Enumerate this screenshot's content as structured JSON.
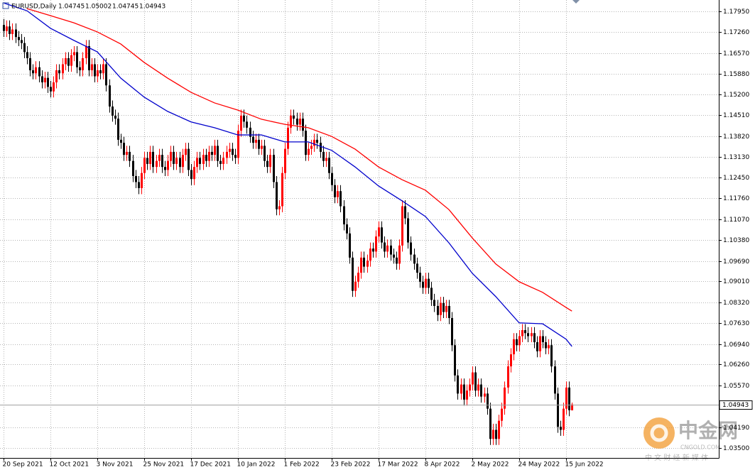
{
  "chart_data": {
    "type": "candlestick",
    "title": "EURUSD,Daily",
    "categories": [
      "20 Sep 2021",
      null,
      null,
      null,
      null,
      null,
      null,
      null,
      null,
      null,
      null,
      null,
      null,
      null,
      null,
      null,
      "12 Oct 2021",
      null,
      null,
      null,
      null,
      null,
      null,
      null,
      null,
      null,
      null,
      null,
      null,
      null,
      null,
      null,
      "3 Nov 2021",
      null,
      null,
      null,
      null,
      null,
      null,
      null,
      null,
      null,
      null,
      null,
      null,
      null,
      null,
      null,
      "25 Nov 2021",
      null,
      null,
      null,
      null,
      null,
      null,
      null,
      null,
      null,
      null,
      null,
      null,
      null,
      null,
      null,
      "17 Dec 2021",
      null,
      null,
      null,
      null,
      null,
      null,
      null,
      null,
      null,
      null,
      null,
      null,
      null,
      null,
      null,
      "10 Jan 2022",
      null,
      null,
      null,
      null,
      null,
      null,
      null,
      null,
      null,
      null,
      null,
      null,
      null,
      null,
      null,
      "1 Feb 2022",
      null,
      null,
      null,
      null,
      null,
      null,
      null,
      null,
      null,
      null,
      null,
      null,
      null,
      null,
      null,
      "23 Feb 2022",
      null,
      null,
      null,
      null,
      null,
      null,
      null,
      null,
      null,
      null,
      null,
      null,
      null,
      null,
      null,
      "17 Mar 2022",
      null,
      null,
      null,
      null,
      null,
      null,
      null,
      null,
      null,
      null,
      null,
      null,
      null,
      null,
      null,
      "8 Apr 2022",
      null,
      null,
      null,
      null,
      null,
      null,
      null,
      null,
      null,
      null,
      null,
      null,
      null,
      null,
      null,
      "2 May 2022",
      null,
      null,
      null,
      null,
      null,
      null,
      null,
      null,
      null,
      null,
      null,
      null,
      null,
      null,
      null,
      "24 May 2022",
      null,
      null,
      null,
      null,
      null,
      null,
      null,
      null,
      null,
      null,
      null,
      null,
      null,
      null,
      null,
      "15 Jun 2022",
      null,
      null
    ],
    "open": [
      1.175,
      1.173,
      1.1745,
      1.172,
      1.1735,
      1.171,
      1.17,
      1.169,
      1.166,
      1.164,
      1.16,
      1.159,
      1.161,
      1.158,
      1.156,
      1.1575,
      1.1545,
      1.153,
      1.156,
      1.16,
      1.159,
      1.162,
      1.164,
      1.1615,
      1.165,
      1.166,
      1.161,
      1.16,
      1.164,
      1.168,
      1.16,
      1.162,
      1.158,
      1.16,
      1.159,
      1.162,
      1.155,
      1.148,
      1.145,
      1.144,
      1.137,
      1.136,
      1.132,
      1.133,
      1.13,
      1.125,
      1.123,
      1.121,
      1.126,
      1.131,
      1.129,
      1.133,
      1.128,
      1.13,
      1.132,
      1.128,
      1.127,
      1.13,
      1.133,
      1.129,
      1.131,
      1.128,
      1.132,
      1.134,
      1.127,
      1.124,
      1.128,
      1.131,
      1.129,
      1.132,
      1.13,
      1.133,
      1.132,
      1.135,
      1.13,
      1.129,
      1.131,
      1.133,
      1.134,
      1.132,
      1.131,
      1.14,
      1.145,
      1.143,
      1.141,
      1.138,
      1.136,
      1.137,
      1.134,
      1.135,
      1.13,
      1.128,
      1.132,
      1.123,
      1.114,
      1.115,
      1.126,
      1.134,
      1.141,
      1.145,
      1.144,
      1.142,
      1.144,
      1.14,
      1.132,
      1.134,
      1.135,
      1.137,
      1.136,
      1.133,
      1.13,
      1.131,
      1.126,
      1.122,
      1.118,
      1.12,
      1.115,
      1.109,
      1.106,
      1.098,
      1.087,
      1.09,
      1.093,
      1.098,
      1.095,
      1.097,
      1.101,
      1.1,
      1.105,
      1.108,
      1.103,
      1.1,
      1.102,
      1.099,
      1.098,
      1.096,
      1.102,
      1.115,
      1.111,
      1.103,
      1.099,
      1.096,
      1.093,
      1.09,
      1.088,
      1.091,
      1.088,
      1.084,
      1.082,
      1.079,
      1.083,
      1.08,
      1.082,
      1.078,
      1.069,
      1.059,
      1.053,
      1.056,
      1.051,
      1.054,
      1.056,
      1.06,
      1.054,
      1.056,
      1.052,
      1.053,
      1.048,
      1.038,
      1.041,
      1.038,
      1.044,
      1.048,
      1.055,
      1.062,
      1.066,
      1.071,
      1.069,
      1.072,
      1.074,
      1.073,
      1.072,
      1.073,
      1.07,
      1.067,
      1.072,
      1.07,
      1.068,
      1.069,
      1.062,
      1.053,
      1.042,
      1.041,
      1.048,
      1.055,
      1.04745
    ],
    "high": [
      1.177,
      1.1765,
      1.1765,
      1.1755,
      1.1755,
      1.173,
      1.172,
      1.171,
      1.168,
      1.166,
      1.162,
      1.163,
      1.163,
      1.16,
      1.1595,
      1.1595,
      1.1565,
      1.158,
      1.162,
      1.162,
      1.164,
      1.166,
      1.166,
      1.167,
      1.168,
      1.168,
      1.163,
      1.166,
      1.17,
      1.17,
      1.164,
      1.164,
      1.162,
      1.162,
      1.164,
      1.164,
      1.157,
      1.15,
      1.147,
      1.146,
      1.139,
      1.138,
      1.135,
      1.135,
      1.132,
      1.127,
      1.125,
      1.128,
      1.133,
      1.133,
      1.135,
      1.135,
      1.132,
      1.134,
      1.134,
      1.13,
      1.132,
      1.135,
      1.135,
      1.133,
      1.133,
      1.134,
      1.136,
      1.136,
      1.129,
      1.13,
      1.133,
      1.133,
      1.134,
      1.134,
      1.135,
      1.135,
      1.137,
      1.137,
      1.132,
      1.133,
      1.135,
      1.136,
      1.136,
      1.134,
      1.142,
      1.147,
      1.147,
      1.145,
      1.143,
      1.14,
      1.139,
      1.139,
      1.137,
      1.137,
      1.132,
      1.134,
      1.134,
      1.125,
      1.117,
      1.128,
      1.136,
      1.143,
      1.147,
      1.147,
      1.146,
      1.146,
      1.146,
      1.142,
      1.136,
      1.137,
      1.139,
      1.139,
      1.138,
      1.135,
      1.133,
      1.133,
      1.128,
      1.124,
      1.122,
      1.122,
      1.117,
      1.111,
      1.108,
      1.1,
      1.092,
      1.095,
      1.1,
      1.1,
      1.099,
      1.103,
      1.103,
      1.107,
      1.11,
      1.11,
      1.105,
      1.104,
      1.104,
      1.101,
      1.1,
      1.104,
      1.117,
      1.117,
      1.113,
      1.105,
      1.101,
      1.098,
      1.095,
      1.092,
      1.093,
      1.093,
      1.09,
      1.086,
      1.084,
      1.085,
      1.085,
      1.084,
      1.084,
      1.08,
      1.071,
      1.061,
      1.058,
      1.058,
      1.056,
      1.058,
      1.062,
      1.062,
      1.058,
      1.058,
      1.055,
      1.055,
      1.05,
      1.043,
      1.043,
      1.046,
      1.05,
      1.057,
      1.064,
      1.068,
      1.073,
      1.073,
      1.074,
      1.076,
      1.076,
      1.075,
      1.075,
      1.075,
      1.072,
      1.074,
      1.074,
      1.072,
      1.071,
      1.071,
      1.064,
      1.055,
      1.044,
      1.05,
      1.057,
      1.057,
      1.05002
    ],
    "low": [
      1.171,
      1.171,
      1.17,
      1.17,
      1.169,
      1.168,
      1.167,
      1.164,
      1.162,
      1.158,
      1.157,
      1.157,
      1.156,
      1.154,
      1.154,
      1.1525,
      1.151,
      1.151,
      1.154,
      1.157,
      1.157,
      1.16,
      1.1595,
      1.1595,
      1.163,
      1.159,
      1.158,
      1.158,
      1.162,
      1.158,
      1.158,
      1.156,
      1.156,
      1.157,
      1.157,
      1.153,
      1.146,
      1.143,
      1.142,
      1.135,
      1.134,
      1.13,
      1.13,
      1.128,
      1.123,
      1.121,
      1.119,
      1.119,
      1.124,
      1.127,
      1.127,
      1.126,
      1.126,
      1.128,
      1.126,
      1.125,
      1.125,
      1.128,
      1.127,
      1.127,
      1.126,
      1.126,
      1.13,
      1.125,
      1.122,
      1.122,
      1.126,
      1.127,
      1.127,
      1.128,
      1.128,
      1.13,
      1.13,
      1.128,
      1.127,
      1.127,
      1.129,
      1.131,
      1.13,
      1.129,
      1.129,
      1.138,
      1.141,
      1.139,
      1.136,
      1.134,
      1.134,
      1.132,
      1.132,
      1.128,
      1.126,
      1.126,
      1.121,
      1.112,
      1.112,
      1.113,
      1.124,
      1.132,
      1.139,
      1.142,
      1.14,
      1.14,
      1.138,
      1.13,
      1.13,
      1.132,
      1.133,
      1.134,
      1.131,
      1.128,
      1.128,
      1.124,
      1.12,
      1.116,
      1.116,
      1.113,
      1.107,
      1.104,
      1.096,
      1.085,
      1.085,
      1.088,
      1.091,
      1.093,
      1.093,
      1.095,
      1.098,
      1.098,
      1.103,
      1.101,
      1.098,
      1.098,
      1.097,
      1.096,
      1.094,
      1.094,
      1.1,
      1.109,
      1.101,
      1.097,
      1.094,
      1.091,
      1.088,
      1.086,
      1.086,
      1.086,
      1.082,
      1.08,
      1.077,
      1.077,
      1.078,
      1.078,
      1.076,
      1.067,
      1.057,
      1.051,
      1.051,
      1.049,
      1.049,
      1.052,
      1.054,
      1.052,
      1.052,
      1.05,
      1.05,
      1.046,
      1.036,
      1.036,
      1.036,
      1.036,
      1.042,
      1.046,
      1.053,
      1.06,
      1.064,
      1.067,
      1.067,
      1.07,
      1.071,
      1.07,
      1.07,
      1.068,
      1.065,
      1.065,
      1.068,
      1.066,
      1.066,
      1.06,
      1.051,
      1.04,
      1.039,
      1.039,
      1.046,
      1.0455,
      1.04745
    ],
    "close": [
      1.173,
      1.1745,
      1.172,
      1.1735,
      1.171,
      1.17,
      1.169,
      1.166,
      1.164,
      1.16,
      1.159,
      1.161,
      1.158,
      1.156,
      1.1575,
      1.1545,
      1.153,
      1.156,
      1.16,
      1.159,
      1.162,
      1.164,
      1.1615,
      1.165,
      1.166,
      1.161,
      1.16,
      1.164,
      1.168,
      1.16,
      1.162,
      1.158,
      1.16,
      1.159,
      1.162,
      1.155,
      1.148,
      1.145,
      1.144,
      1.137,
      1.136,
      1.132,
      1.133,
      1.13,
      1.125,
      1.123,
      1.121,
      1.126,
      1.131,
      1.129,
      1.133,
      1.128,
      1.13,
      1.132,
      1.128,
      1.127,
      1.13,
      1.133,
      1.129,
      1.131,
      1.128,
      1.132,
      1.134,
      1.127,
      1.124,
      1.128,
      1.131,
      1.129,
      1.132,
      1.13,
      1.133,
      1.132,
      1.135,
      1.13,
      1.129,
      1.131,
      1.133,
      1.134,
      1.132,
      1.131,
      1.14,
      1.145,
      1.143,
      1.141,
      1.138,
      1.136,
      1.137,
      1.134,
      1.135,
      1.13,
      1.128,
      1.132,
      1.123,
      1.114,
      1.115,
      1.126,
      1.134,
      1.141,
      1.145,
      1.144,
      1.142,
      1.144,
      1.14,
      1.132,
      1.134,
      1.135,
      1.137,
      1.136,
      1.133,
      1.13,
      1.131,
      1.126,
      1.122,
      1.118,
      1.12,
      1.115,
      1.109,
      1.106,
      1.098,
      1.087,
      1.09,
      1.093,
      1.098,
      1.095,
      1.097,
      1.101,
      1.1,
      1.105,
      1.108,
      1.103,
      1.1,
      1.102,
      1.099,
      1.098,
      1.096,
      1.102,
      1.115,
      1.111,
      1.103,
      1.099,
      1.096,
      1.093,
      1.09,
      1.088,
      1.091,
      1.088,
      1.084,
      1.082,
      1.079,
      1.083,
      1.08,
      1.082,
      1.078,
      1.069,
      1.059,
      1.053,
      1.056,
      1.051,
      1.054,
      1.056,
      1.06,
      1.054,
      1.056,
      1.052,
      1.053,
      1.048,
      1.038,
      1.041,
      1.038,
      1.044,
      1.048,
      1.055,
      1.062,
      1.066,
      1.071,
      1.069,
      1.072,
      1.074,
      1.073,
      1.072,
      1.073,
      1.07,
      1.067,
      1.072,
      1.07,
      1.068,
      1.069,
      1.062,
      1.053,
      1.042,
      1.041,
      1.048,
      1.055,
      1.0475,
      1.04943
    ],
    "up_color": "#ff0000",
    "down_color": "#000000",
    "lines": [
      {
        "color": "#0000cc",
        "x": [
          0,
          8,
          16,
          24,
          32,
          40,
          48,
          56,
          64,
          72,
          80,
          88,
          96,
          104,
          112,
          120,
          128,
          136,
          144,
          152,
          160,
          168,
          176,
          184,
          192,
          194
        ],
        "values": [
          1.1823,
          1.1797,
          1.1739,
          1.1699,
          1.1661,
          1.1574,
          1.1511,
          1.1464,
          1.1429,
          1.141,
          1.1386,
          1.1386,
          1.1363,
          1.1363,
          1.1335,
          1.128,
          1.1217,
          1.1168,
          1.1116,
          1.1029,
          1.0928,
          1.0851,
          1.0764,
          1.0761,
          1.071,
          1.0686
        ]
      },
      {
        "color": "#ff0000",
        "x": [
          8,
          16,
          24,
          32,
          40,
          48,
          56,
          64,
          72,
          80,
          88,
          96,
          104,
          112,
          120,
          128,
          136,
          144,
          152,
          160,
          168,
          176,
          184,
          192,
          194
        ],
        "values": [
          1.1804,
          1.1781,
          1.1757,
          1.1727,
          1.1687,
          1.1626,
          1.1574,
          1.1527,
          1.1492,
          1.1468,
          1.1438,
          1.1421,
          1.141,
          1.1381,
          1.1339,
          1.128,
          1.1238,
          1.1203,
          1.1139,
          1.1045,
          1.0959,
          1.09,
          1.0865,
          1.0815,
          1.0803
        ]
      }
    ],
    "ylim": [
      1.0317,
      1.18326
    ],
    "yticks": [
      {
        "value": 1.1795,
        "label": "1.17950"
      },
      {
        "value": 1.1726,
        "label": "1.17260"
      },
      {
        "value": 1.1657,
        "label": "1.16570"
      },
      {
        "value": 1.1588,
        "label": "1.15880"
      },
      {
        "value": 1.152,
        "label": "1.15200"
      },
      {
        "value": 1.1451,
        "label": "1.14510"
      },
      {
        "value": 1.1382,
        "label": "1.13820"
      },
      {
        "value": 1.1313,
        "label": "1.13130"
      },
      {
        "value": 1.1245,
        "label": "1.12450"
      },
      {
        "value": 1.1176,
        "label": "1.11760"
      },
      {
        "value": 1.1107,
        "label": "1.11070"
      },
      {
        "value": 1.1038,
        "label": "1.10380"
      },
      {
        "value": 1.0969,
        "label": "1.09690"
      },
      {
        "value": 1.0901,
        "label": "1.09010"
      },
      {
        "value": 1.0832,
        "label": "1.08320"
      },
      {
        "value": 1.0763,
        "label": "1.07630"
      },
      {
        "value": 1.0694,
        "label": "1.06940"
      },
      {
        "value": 1.0626,
        "label": "1.06260"
      },
      {
        "value": 1.0557,
        "label": "1.05570"
      },
      {
        "value": 1.0419,
        "label": "1.04190"
      },
      {
        "value": 1.035,
        "label": "1.03500"
      }
    ],
    "grid": true
  },
  "watermark": {
    "brand": "中金网",
    "site": "CNGOLD.COM",
    "slogan": "中 文 财 经 新 媒 体"
  }
}
